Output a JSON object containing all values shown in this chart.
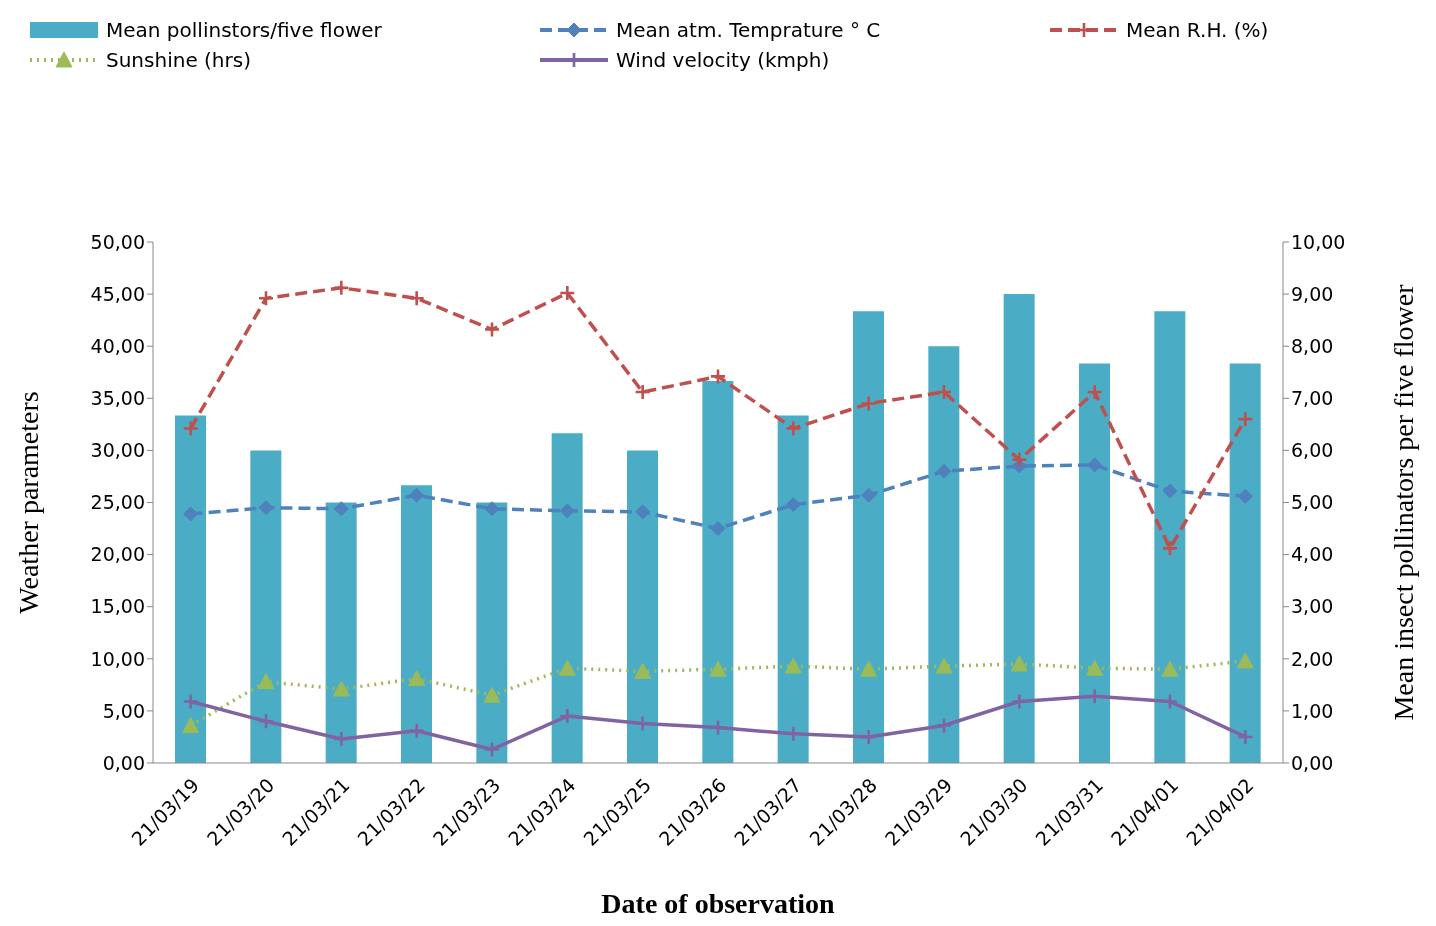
{
  "chart_data": {
    "type": "line",
    "xlabel": "Date of observation",
    "ylabel": "Weather parameters",
    "y2label": "Mean insect pollinators per five flower",
    "categories": [
      "21/03/19",
      "21/03/20",
      "21/03/21",
      "21/03/22",
      "21/03/23",
      "21/03/24",
      "21/03/25",
      "21/03/26",
      "21/03/27",
      "21/03/28",
      "21/03/29",
      "21/03/30",
      "21/03/31",
      "21/04/01",
      "21/04/02"
    ],
    "series": [
      {
        "name": "Mean pollinstors/five flower",
        "type": "bar",
        "axis": "y2",
        "color": "#4bacc6",
        "values": [
          6.67,
          6.0,
          5.0,
          5.33,
          5.0,
          6.33,
          6.0,
          7.33,
          6.67,
          8.67,
          8.0,
          9.0,
          7.67,
          8.67,
          7.67
        ]
      },
      {
        "name": "Mean atm. Temprature ° C",
        "color": "#4f81bd",
        "marker": "diamond",
        "line_style": "dashed",
        "values": [
          23.9,
          24.5,
          24.4,
          25.7,
          24.4,
          24.2,
          24.1,
          22.5,
          24.8,
          25.7,
          28.0,
          28.5,
          28.6,
          26.1,
          25.6
        ]
      },
      {
        "name": "Mean R.H. (%)",
        "color": "#c0504d",
        "marker": "cross",
        "line_style": "dashed",
        "values": [
          32.1,
          44.6,
          45.6,
          44.6,
          41.6,
          45.1,
          35.6,
          37.1,
          32.1,
          34.5,
          35.6,
          29.1,
          35.6,
          20.6,
          33.0
        ]
      },
      {
        "name": "Sunshine (hrs)",
        "color": "#9bbb59",
        "marker": "triangle",
        "line_style": "dotted",
        "values": [
          3.6,
          7.8,
          7.1,
          8.1,
          6.5,
          9.1,
          8.8,
          9.0,
          9.3,
          9.0,
          9.3,
          9.5,
          9.1,
          9.0,
          9.8
        ]
      },
      {
        "name": "Wind velocity (kmph)",
        "color": "#8064a2",
        "marker": "cross",
        "line_style": "solid",
        "values": [
          5.9,
          4.0,
          2.3,
          3.1,
          1.3,
          4.5,
          3.8,
          3.4,
          2.8,
          2.5,
          3.6,
          5.9,
          6.4,
          5.9,
          2.5
        ]
      }
    ],
    "ylim": [
      0,
      50
    ],
    "yticks": [
      {
        "value": 0,
        "label": "0,00"
      },
      {
        "value": 5,
        "label": "5,00"
      },
      {
        "value": 10,
        "label": "10,00"
      },
      {
        "value": 15,
        "label": "15,00"
      },
      {
        "value": 20,
        "label": "20,00"
      },
      {
        "value": 25,
        "label": "25,00"
      },
      {
        "value": 30,
        "label": "30,00"
      },
      {
        "value": 35,
        "label": "35,00"
      },
      {
        "value": 40,
        "label": "40,00"
      },
      {
        "value": 45,
        "label": "45,00"
      },
      {
        "value": 50,
        "label": "50,00"
      }
    ],
    "y2lim": [
      0,
      10
    ],
    "y2ticks": [
      {
        "value": 0,
        "label": "0,00"
      },
      {
        "value": 1,
        "label": "1,00"
      },
      {
        "value": 2,
        "label": "2,00"
      },
      {
        "value": 3,
        "label": "3,00"
      },
      {
        "value": 4,
        "label": "4,00"
      },
      {
        "value": 5,
        "label": "5,00"
      },
      {
        "value": 6,
        "label": "6,00"
      },
      {
        "value": 7,
        "label": "7,00"
      },
      {
        "value": 8,
        "label": "8,00"
      },
      {
        "value": 9,
        "label": "9,00"
      },
      {
        "value": 10,
        "label": "10,00"
      }
    ],
    "legend": "top",
    "grid": false
  }
}
